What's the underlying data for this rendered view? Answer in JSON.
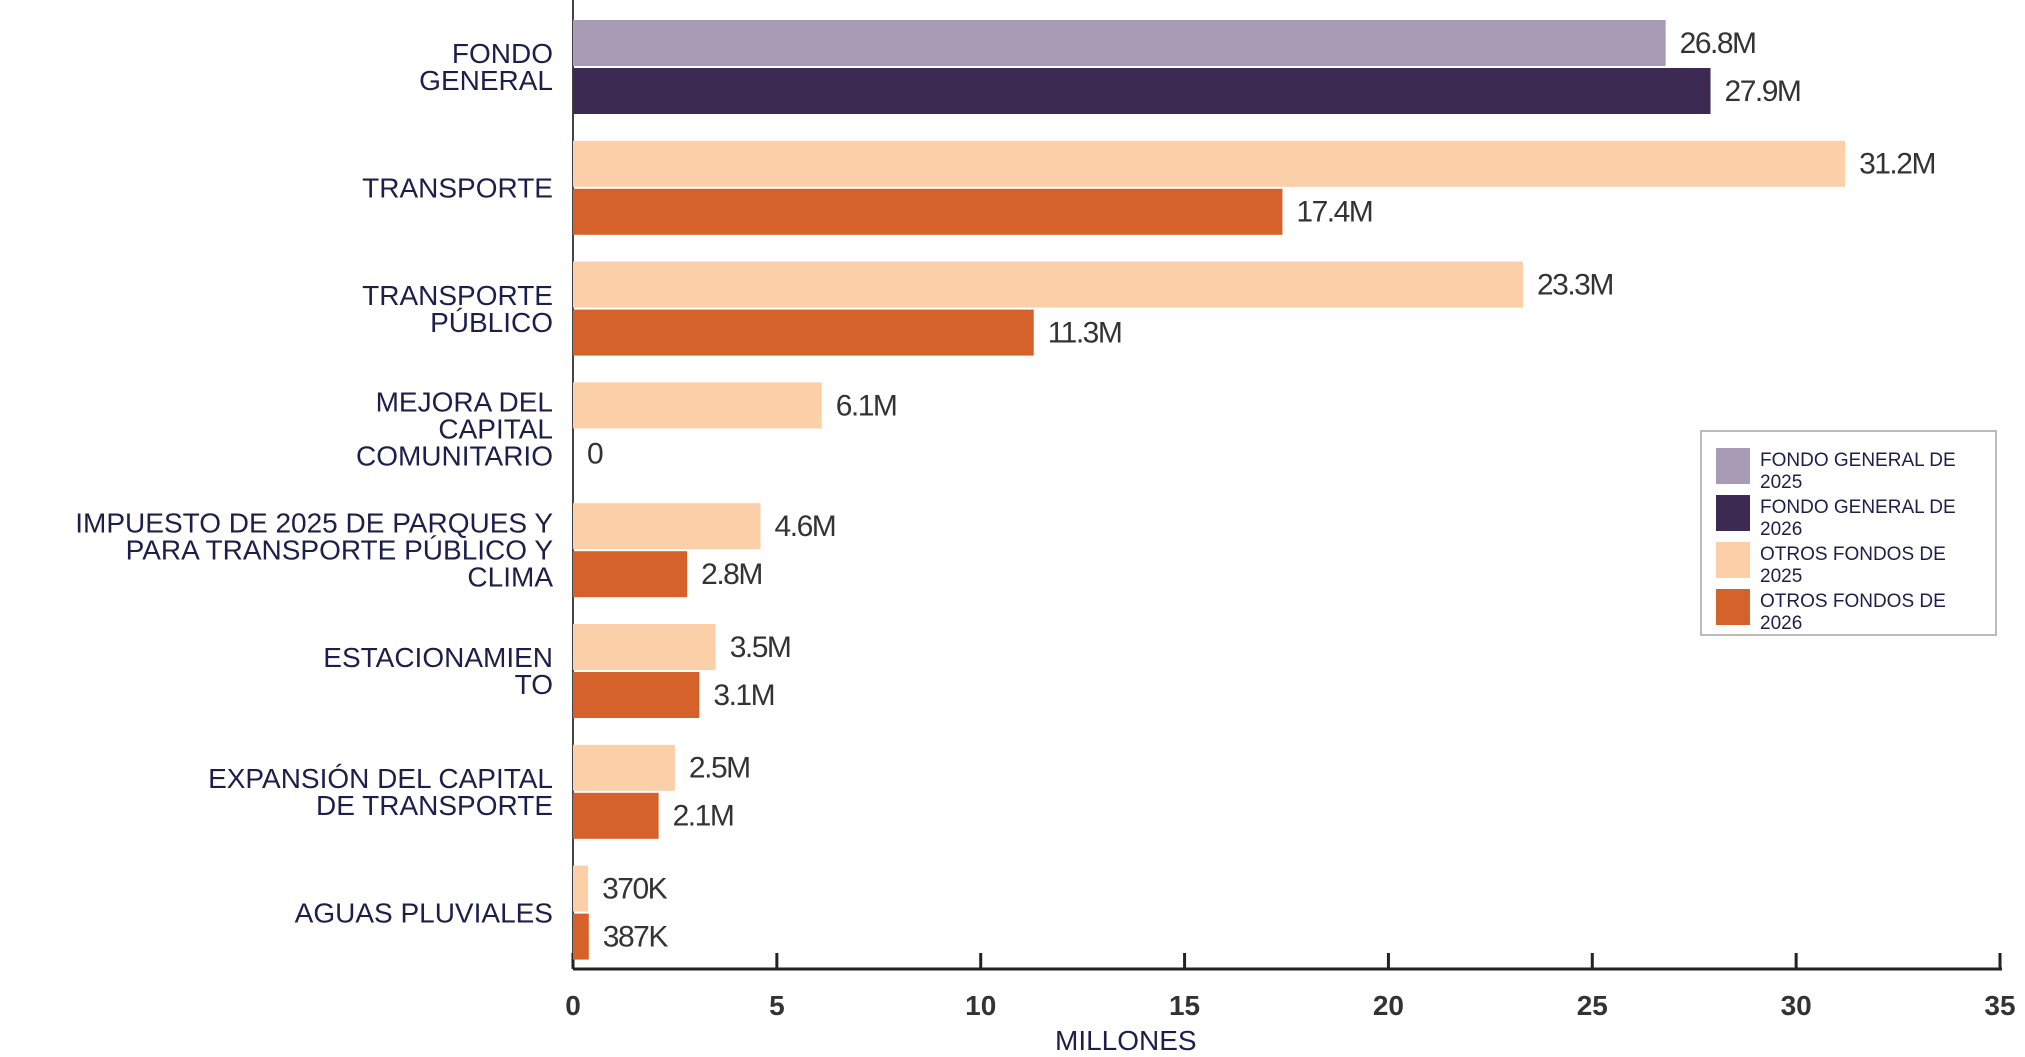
{
  "chart_data": {
    "type": "bar",
    "orientation": "horizontal",
    "xlabel": "MILLONES",
    "categories": [
      "FONDO\nGENERAL",
      "TRANSPORTE",
      "TRANSPORTE\nPÚBLICO",
      "MEJORA DEL\nCAPITAL\nCOMUNITARIO",
      "IMPUESTO DE 2025 DE PARQUES Y\nPARA TRANSPORTE PÚBLICO Y\nCLIMA",
      "ESTACIONAMIEN\nTO",
      "EXPANSIÓN DEL CAPITAL\nDE TRANSPORTE",
      "AGUAS PLUVIALES"
    ],
    "series": [
      {
        "name": "FONDO GENERAL DE 2025",
        "color": "#a99bb5",
        "values": [
          26.8,
          null,
          null,
          null,
          null,
          null,
          null,
          null
        ],
        "value_labels": [
          "26.8M",
          null,
          null,
          null,
          null,
          null,
          null,
          null
        ]
      },
      {
        "name": "FONDO GENERAL DE 2026",
        "color": "#3d2a52",
        "values": [
          27.9,
          null,
          null,
          null,
          null,
          null,
          null,
          null
        ],
        "value_labels": [
          "27.9M",
          null,
          null,
          null,
          null,
          null,
          null,
          null
        ]
      },
      {
        "name": "OTROS FONDOS DE 2025",
        "color": "#fbd0a8",
        "values": [
          null,
          31.2,
          23.3,
          6.1,
          4.6,
          3.5,
          2.5,
          0.37
        ],
        "value_labels": [
          null,
          "31.2M",
          "23.3M",
          "6.1M",
          "4.6M",
          "3.5M",
          "2.5M",
          "370K"
        ]
      },
      {
        "name": "OTROS FONDOS DE 2026",
        "color": "#d4622a",
        "values": [
          null,
          17.4,
          11.3,
          0,
          2.8,
          3.1,
          2.1,
          0.387
        ],
        "value_labels": [
          null,
          "17.4M",
          "11.3M",
          "0",
          "2.8M",
          "3.1M",
          "2.1M",
          "387K"
        ]
      }
    ],
    "xlim": [
      0,
      35
    ],
    "xticks": [
      0,
      5,
      10,
      15,
      20,
      25,
      30,
      35
    ],
    "legend": "right"
  }
}
